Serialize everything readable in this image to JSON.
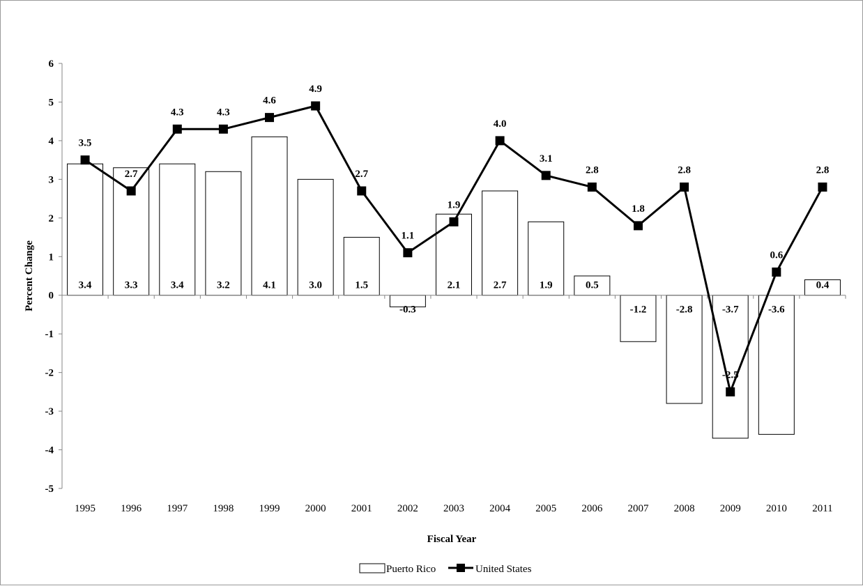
{
  "chart_data": {
    "type": "bar",
    "categories": [
      "1995",
      "1996",
      "1997",
      "1998",
      "1999",
      "2000",
      "2001",
      "2002",
      "2003",
      "2004",
      "2005",
      "2006",
      "2007",
      "2008",
      "2009",
      "2010",
      "2011"
    ],
    "series": [
      {
        "name": "Puerto Rico",
        "type": "bar",
        "values": [
          3.4,
          3.3,
          3.4,
          3.2,
          4.1,
          3.0,
          1.5,
          -0.3,
          2.1,
          2.7,
          1.9,
          0.5,
          -1.2,
          -2.8,
          -3.7,
          -3.6,
          0.4
        ],
        "labels": [
          "3.4",
          "3.3",
          "3.4",
          "3.2",
          "4.1",
          "3.0",
          "1.5",
          "-0.3",
          "2.1",
          "2.7",
          "1.9",
          "0.5",
          "-1.2",
          "-2.8",
          "-3.7",
          "-3.6",
          "0.4"
        ]
      },
      {
        "name": "United States",
        "type": "line",
        "values": [
          3.5,
          2.7,
          4.3,
          4.3,
          4.6,
          4.9,
          2.7,
          1.1,
          1.9,
          4.0,
          3.1,
          2.8,
          1.8,
          2.8,
          -2.5,
          0.6,
          2.8
        ],
        "labels": [
          "3.5",
          "2.7",
          "4.3",
          "4.3",
          "4.6",
          "4.9",
          "2.7",
          "1.1",
          "1.9",
          "4.0",
          "3.1",
          "2.8",
          "1.8",
          "2.8",
          "-2.5",
          "0.6",
          "2.8"
        ]
      }
    ],
    "xlabel": "Fiscal Year",
    "ylabel": "Percent Change",
    "ylim": [
      -5,
      6
    ],
    "yticks": [
      "-5",
      "-4",
      "-3",
      "-2",
      "-1",
      "0",
      "1",
      "2",
      "3",
      "4",
      "5",
      "6"
    ],
    "grid": false,
    "legend": "bottom"
  }
}
